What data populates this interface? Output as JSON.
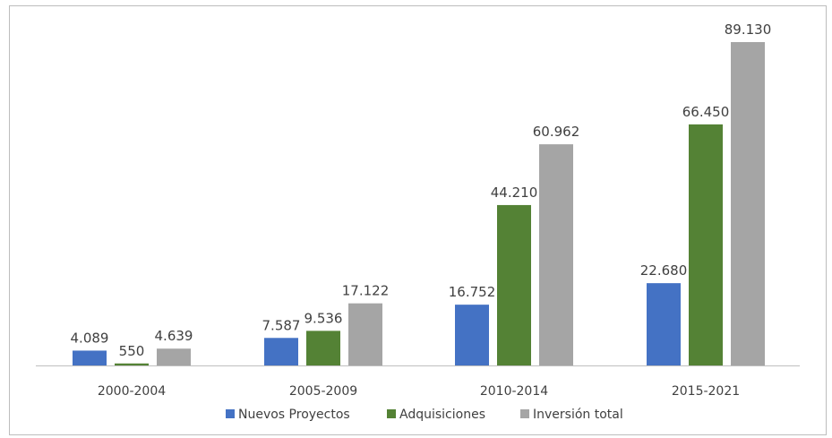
{
  "chart_data": {
    "type": "bar",
    "categories": [
      "2000-2004",
      "2005-2009",
      "2010-2014",
      "2015-2021"
    ],
    "series": [
      {
        "name": "Nuevos Proyectos",
        "values": [
          4089,
          7587,
          16752,
          22680
        ],
        "labels": [
          "4.089",
          "7.587",
          "16.752",
          "22.680"
        ],
        "color": "#4472c4"
      },
      {
        "name": "Adquisiciones",
        "values": [
          550,
          9536,
          44210,
          66450
        ],
        "labels": [
          "550",
          "9.536",
          "44.210",
          "66.450"
        ],
        "color": "#548235"
      },
      {
        "name": "Inversión total",
        "values": [
          4639,
          17122,
          60962,
          89130
        ],
        "labels": [
          "4.639",
          "17.122",
          "60.962",
          "89.130"
        ],
        "color": "#a5a5a5"
      }
    ],
    "ylim": [
      0,
      89130
    ],
    "grid": false,
    "legend_position": "bottom",
    "colors": {
      "axis": "#bfbfbf",
      "text": "#404040",
      "frame": "#bdbdbd"
    }
  }
}
